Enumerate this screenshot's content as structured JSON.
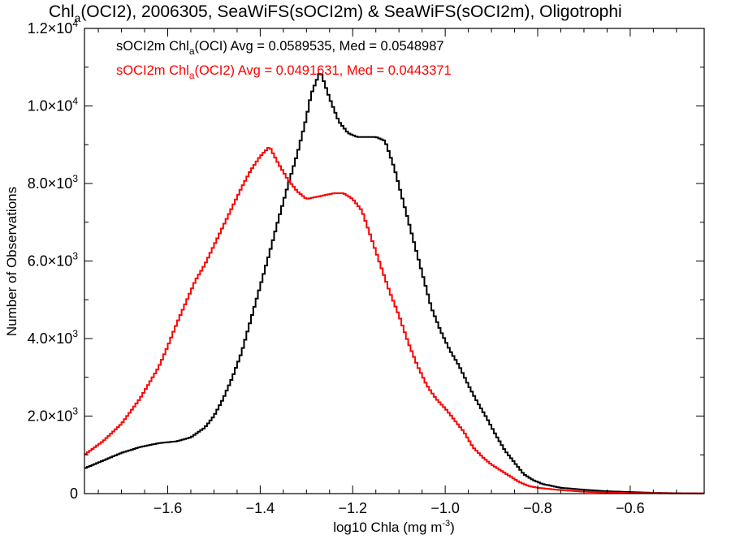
{
  "chart_data": {
    "type": "line",
    "title": {
      "prefix": "Chl",
      "subscript": "a",
      "suffix": "(OCI2), 2006305, SeaWiFS(sOCI2m) & SeaWiFS(sOCI2m), Oligotrophi"
    },
    "xlabel": {
      "main": "log10 Chla (mg m",
      "sup": "-3",
      "close": ")"
    },
    "ylabel": "Number of Observations",
    "xlim": [
      -1.78,
      -0.44
    ],
    "ylim": [
      0,
      12000
    ],
    "x_ticks": [
      -1.6,
      -1.4,
      -1.2,
      -1.0,
      -0.8,
      -0.6
    ],
    "x_tick_labels": [
      "−1.6",
      "−1.4",
      "−1.2",
      "−1.0",
      "−0.8",
      "−0.6"
    ],
    "y_ticks": [
      {
        "value": 0,
        "mantissa": "0",
        "exp": ""
      },
      {
        "value": 2000,
        "mantissa": "2.0×10",
        "exp": "3"
      },
      {
        "value": 4000,
        "mantissa": "4.0×10",
        "exp": "3"
      },
      {
        "value": 6000,
        "mantissa": "6.0×10",
        "exp": "3"
      },
      {
        "value": 8000,
        "mantissa": "8.0×10",
        "exp": "3"
      },
      {
        "value": 10000,
        "mantissa": "1.0×10",
        "exp": "4"
      },
      {
        "value": 12000,
        "mantissa": "1.2×10",
        "exp": "4"
      }
    ],
    "grid": false,
    "legend_placement": "top-left",
    "series": [
      {
        "name_prefix": "sOCI2m Chl",
        "name_sub": "a",
        "name_suffix": "(OCI) Avg = 0.0589535, Med = 0.0548987",
        "color": "#000000",
        "x": [
          -1.78,
          -1.74,
          -1.7,
          -1.66,
          -1.62,
          -1.58,
          -1.55,
          -1.52,
          -1.5,
          -1.48,
          -1.46,
          -1.44,
          -1.42,
          -1.4,
          -1.38,
          -1.36,
          -1.34,
          -1.32,
          -1.3,
          -1.29,
          -1.28,
          -1.27,
          -1.25,
          -1.23,
          -1.21,
          -1.19,
          -1.17,
          -1.15,
          -1.13,
          -1.11,
          -1.09,
          -1.07,
          -1.05,
          -1.03,
          -1.01,
          -0.99,
          -0.97,
          -0.95,
          -0.93,
          -0.91,
          -0.89,
          -0.87,
          -0.85,
          -0.83,
          -0.81,
          -0.79,
          -0.75,
          -0.7,
          -0.65,
          -0.6,
          -0.55,
          -0.5,
          -0.44
        ],
        "y": [
          650,
          850,
          1050,
          1200,
          1300,
          1350,
          1450,
          1700,
          2000,
          2450,
          3000,
          3650,
          4500,
          5350,
          6200,
          7100,
          7950,
          8750,
          9700,
          10300,
          10600,
          10900,
          10200,
          9600,
          9300,
          9200,
          9200,
          9200,
          9100,
          8400,
          7500,
          6600,
          5700,
          4800,
          4200,
          3700,
          3300,
          2800,
          2350,
          1950,
          1500,
          1100,
          800,
          500,
          350,
          250,
          150,
          100,
          60,
          40,
          20,
          10,
          5
        ]
      },
      {
        "name_prefix": "sOCI2m Chl",
        "name_sub": "a",
        "name_suffix": "(OCI2) Avg = 0.0491631, Med = 0.0443371",
        "color": "#ff0000",
        "x": [
          -1.78,
          -1.74,
          -1.7,
          -1.66,
          -1.62,
          -1.6,
          -1.58,
          -1.56,
          -1.54,
          -1.52,
          -1.5,
          -1.48,
          -1.46,
          -1.44,
          -1.42,
          -1.4,
          -1.38,
          -1.36,
          -1.34,
          -1.32,
          -1.3,
          -1.28,
          -1.26,
          -1.24,
          -1.22,
          -1.2,
          -1.18,
          -1.16,
          -1.14,
          -1.12,
          -1.1,
          -1.08,
          -1.06,
          -1.04,
          -1.02,
          -1.0,
          -0.98,
          -0.96,
          -0.94,
          -0.92,
          -0.9,
          -0.88,
          -0.86,
          -0.84,
          -0.82,
          -0.8,
          -0.75,
          -0.7,
          -0.65,
          -0.6,
          -0.55,
          -0.5,
          -0.44
        ],
        "y": [
          1000,
          1350,
          1800,
          2450,
          3250,
          3800,
          4400,
          4950,
          5500,
          5900,
          6400,
          6900,
          7400,
          7900,
          8350,
          8700,
          8950,
          8500,
          8100,
          7800,
          7600,
          7650,
          7700,
          7750,
          7750,
          7600,
          7300,
          6600,
          5900,
          5200,
          4600,
          3900,
          3300,
          2800,
          2450,
          2200,
          1900,
          1600,
          1200,
          950,
          750,
          600,
          450,
          300,
          200,
          150,
          90,
          50,
          30,
          15,
          10,
          5,
          5
        ]
      }
    ]
  }
}
